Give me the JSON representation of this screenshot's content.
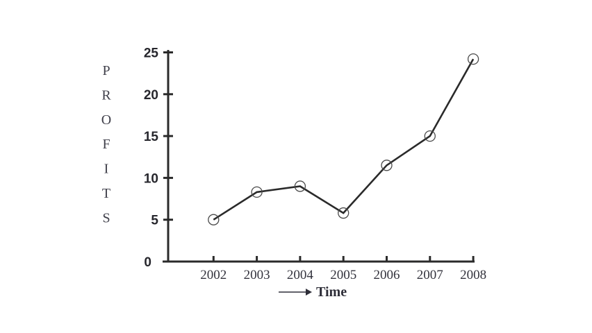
{
  "chart_data": {
    "type": "line",
    "title": "",
    "x": [
      "2002",
      "2003",
      "2004",
      "2005",
      "2006",
      "2007",
      "2008"
    ],
    "values": [
      5,
      8.3,
      9,
      5.8,
      11.5,
      15,
      24.2
    ],
    "series": [
      {
        "name": "Profits",
        "values": [
          5,
          8.3,
          9,
          5.8,
          11.5,
          15,
          24.2
        ]
      }
    ],
    "xlabel": "Time",
    "ylabel": "PROFITS",
    "ylabel_letters": [
      "P",
      "R",
      "O",
      "F",
      "I",
      "T",
      "S"
    ],
    "yticks": [
      0,
      5,
      10,
      15,
      20,
      25
    ],
    "ylim": [
      0,
      25
    ],
    "grid": false,
    "legend": "none",
    "marker": "open-circle",
    "colors": {
      "axis": "#2a2a2a",
      "line": "#2a2a2a",
      "marker_stroke": "#4a4a4a",
      "marker_fill": "none",
      "ytick_label": "#26262c",
      "xtick_label": "#33333d",
      "ylabel_text": "#3f3f4a",
      "background": "#ffffff"
    }
  }
}
